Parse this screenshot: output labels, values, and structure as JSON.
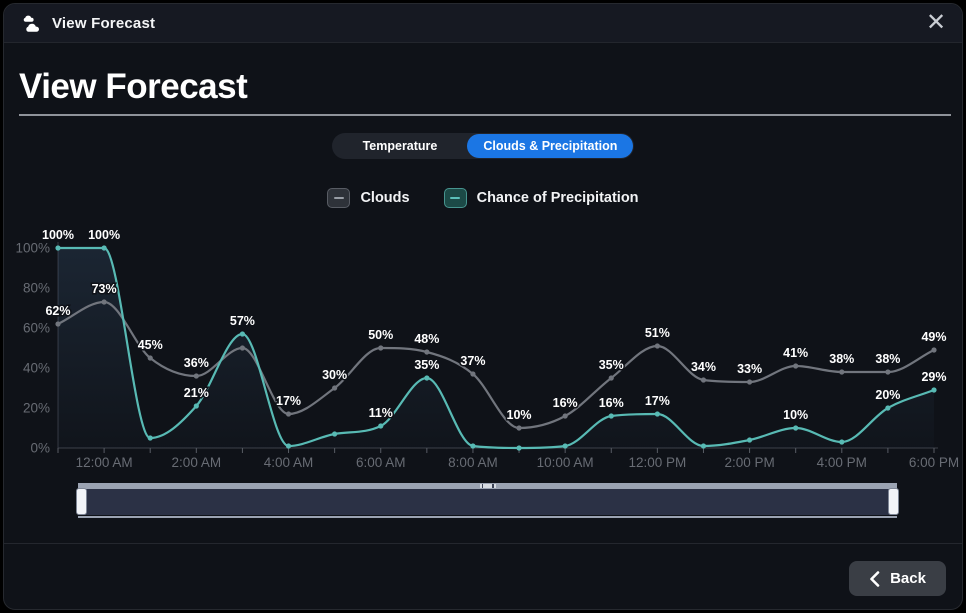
{
  "window": {
    "title": "View Forecast",
    "app_icon": "cloud-icon",
    "close_icon": "✕"
  },
  "header": {
    "title": "View Forecast"
  },
  "toggle": {
    "options": [
      {
        "label": "Temperature",
        "active": false
      },
      {
        "label": "Clouds & Precipitation",
        "active": true
      }
    ],
    "active_color": "#1b76e4"
  },
  "legend": {
    "items": [
      {
        "label": "Clouds",
        "color": "#989da5"
      },
      {
        "label": "Chance of Precipitation",
        "color": "#5cc0ba"
      }
    ]
  },
  "chart_data": {
    "type": "line",
    "title": "",
    "xlabel": "",
    "ylabel": "",
    "ylim": [
      0,
      100
    ],
    "grid": false,
    "legend_position": "top",
    "categories": [
      "11:00 PM",
      "12:00 AM",
      "1:00 AM",
      "2:00 AM",
      "3:00 AM",
      "4:00 AM",
      "5:00 AM",
      "6:00 AM",
      "7:00 AM",
      "8:00 AM",
      "9:00 AM",
      "10:00 AM",
      "11:00 AM",
      "12:00 PM",
      "1:00 PM",
      "2:00 PM",
      "3:00 PM",
      "4:00 PM",
      "5:00 PM",
      "6:00 PM"
    ],
    "x_labels": [
      null,
      "12:00 AM",
      null,
      "2:00 AM",
      null,
      "4:00 AM",
      null,
      "6:00 AM",
      null,
      "8:00 AM",
      null,
      "10:00 AM",
      null,
      "12:00 PM",
      null,
      "2:00 PM",
      null,
      "4:00 PM",
      null,
      "6:00 PM"
    ],
    "y_ticks": [
      "0%",
      "20%",
      "40%",
      "60%",
      "80%",
      "100%"
    ],
    "series": [
      {
        "name": "Clouds",
        "color": "#71757d",
        "area": false,
        "values": [
          62,
          73,
          45,
          36,
          50,
          17,
          30,
          50,
          48,
          37,
          10,
          16,
          35,
          51,
          34,
          33,
          41,
          38,
          38,
          49
        ],
        "point_labels": [
          "62%",
          "73%",
          "45%",
          "36%",
          null,
          "17%",
          "30%",
          "50%",
          "48%",
          "37%",
          "10%",
          "16%",
          "35%",
          "51%",
          "34%",
          "33%",
          "41%",
          "38%",
          "38%",
          "49%"
        ]
      },
      {
        "name": "Chance of Precipitation",
        "color": "#58bab4",
        "area": true,
        "area_color": "#5a8cbe",
        "values": [
          100,
          100,
          5,
          21,
          57,
          1,
          7,
          11,
          35,
          1,
          0,
          1,
          16,
          17,
          1,
          4,
          10,
          3,
          20,
          29
        ],
        "point_labels": [
          "100%",
          "100%",
          null,
          "21%",
          "57%",
          null,
          null,
          "11%",
          "35%",
          null,
          null,
          null,
          "16%",
          "17%",
          null,
          null,
          "10%",
          null,
          "20%",
          "29%"
        ]
      }
    ]
  },
  "footer": {
    "back_label": "Back"
  }
}
